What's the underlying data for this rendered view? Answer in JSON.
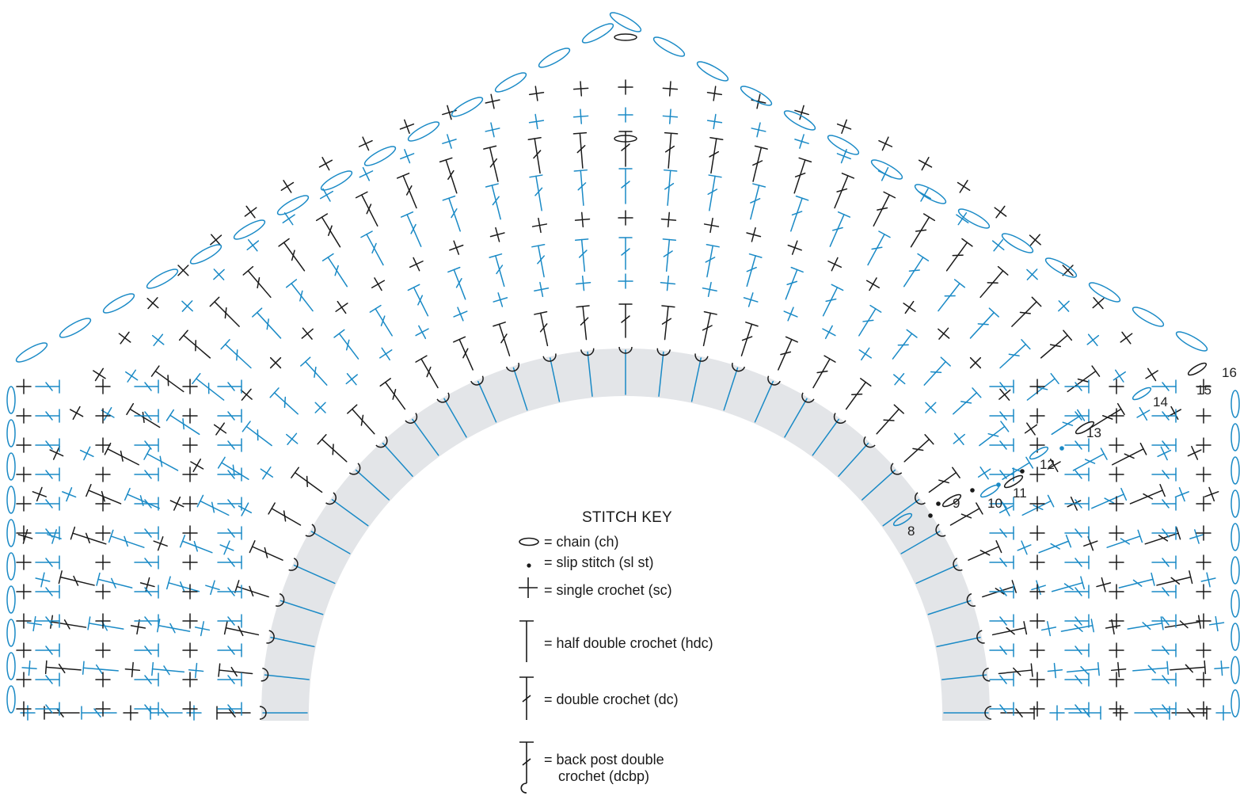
{
  "key": {
    "title": "STITCH KEY",
    "items": [
      {
        "id": "ch",
        "symbol": "chain-icon",
        "label": "= chain (ch)"
      },
      {
        "id": "slst",
        "symbol": "slip-stitch-icon",
        "label": "= slip stitch (sl st)"
      },
      {
        "id": "sc",
        "symbol": "single-crochet-icon",
        "label": "= single crochet (sc)"
      },
      {
        "id": "hdc",
        "symbol": "half-double-crochet-icon",
        "label": "= half double crochet (hdc)"
      },
      {
        "id": "dc",
        "symbol": "double-crochet-icon",
        "label": "= double crochet (dc)"
      },
      {
        "id": "dcbp",
        "symbol": "back-post-dc-icon",
        "label_lines": [
          "= back post double",
          "crochet (dcbp)"
        ]
      }
    ]
  },
  "row_numbers": [
    "8",
    "9",
    "10",
    "11",
    "12",
    "13",
    "14",
    "15",
    "16"
  ],
  "colors": {
    "ink": "#1a1a1a",
    "blue": "#1a8ac6",
    "band": "#e3e5e8"
  }
}
